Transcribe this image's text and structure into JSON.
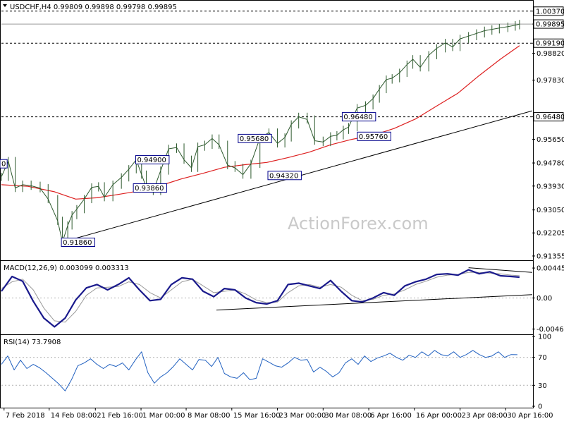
{
  "header": {
    "symbol_line": "USDCHF,H4 0.99809 0.99898 0.99798 0.99895",
    "macd_label": "MACD(12,26,9) 0.003099 0.003313",
    "rsi_label": "RSI(14) 73.7908"
  },
  "watermark": "ActionForex.com",
  "chart_data": [
    {
      "type": "line",
      "name": "price",
      "ylim": [
        0.9125,
        1.0065
      ],
      "y_ticks": [
        "1.00370",
        "0.99895",
        "0.99190",
        "0.98820",
        "0.97830",
        "0.96480",
        "0.95650",
        "0.94780",
        "0.93930",
        "0.93050",
        "0.92205",
        "0.91355"
      ],
      "x_ticks": [
        "7 Feb 2018",
        "14 Feb 08:00",
        "21 Feb 16:00",
        "1 Mar 00:00",
        "8 Mar 08:00",
        "15 Mar 16:00",
        "23 Mar 00:00",
        "30 Mar 08:00",
        "6 Apr 16:00",
        "16 Apr 00:00",
        "23 Apr 08:00",
        "30 Apr 16:00"
      ],
      "x_range": [
        0,
        100
      ],
      "series": [
        {
          "kind": "price",
          "color": "#2e5a2e",
          "x": [
            0,
            1.3,
            2.6,
            4,
            5.6,
            7.3,
            8.8,
            10.6,
            11.5,
            12.5,
            13.3,
            14.2,
            15.6,
            17,
            18.3,
            19.4,
            21,
            22.6,
            24,
            25.4,
            26.4,
            27.3,
            28.6,
            30,
            31.5,
            33,
            34.4,
            35.8,
            37,
            38.3,
            39.7,
            41,
            42.6,
            44,
            45.5,
            47,
            48.7,
            50.4,
            52,
            53.4,
            54.6,
            56,
            57.6,
            59,
            60.6,
            62,
            63.2,
            64.4,
            65.4,
            67,
            68.6,
            70,
            71.2,
            72.5,
            73.6,
            75,
            76.4,
            77.5,
            78.9,
            80.5,
            82,
            83.6,
            85,
            86.4,
            88,
            89.5,
            91,
            92.4,
            93.8,
            95.4,
            96.8,
            97.6
          ],
          "y": [
            0.9427,
            0.9485,
            0.9386,
            0.9398,
            0.9394,
            0.9385,
            0.9345,
            0.9265,
            0.9187,
            0.9248,
            0.9286,
            0.9308,
            0.9345,
            0.9388,
            0.9392,
            0.9352,
            0.9398,
            0.9425,
            0.9455,
            0.949,
            0.9435,
            0.9388,
            0.9375,
            0.945,
            0.953,
            0.9535,
            0.949,
            0.946,
            0.9538,
            0.9545,
            0.9568,
            0.9545,
            0.947,
            0.946,
            0.9435,
            0.9475,
            0.957,
            0.959,
            0.955,
            0.9572,
            0.962,
            0.9648,
            0.9638,
            0.956,
            0.9555,
            0.9576,
            0.958,
            0.96,
            0.961,
            0.968,
            0.969,
            0.9715,
            0.975,
            0.9785,
            0.979,
            0.981,
            0.984,
            0.986,
            0.983,
            0.9875,
            0.99,
            0.992,
            0.9905,
            0.9935,
            0.9945,
            0.9955,
            0.9965,
            0.997,
            0.9975,
            0.998,
            0.9985,
            0.99895
          ]
        },
        {
          "kind": "ma",
          "color": "#dd2020",
          "x": [
            0,
            5,
            10,
            14,
            18,
            22,
            26,
            30,
            34,
            38,
            42,
            46,
            50,
            54,
            58,
            62,
            66,
            70,
            74,
            78,
            82,
            86,
            90,
            94,
            97.6
          ],
          "y": [
            0.9398,
            0.9392,
            0.9372,
            0.9345,
            0.935,
            0.9362,
            0.9375,
            0.9395,
            0.942,
            0.944,
            0.9462,
            0.9472,
            0.948,
            0.9498,
            0.9518,
            0.9545,
            0.9565,
            0.958,
            0.9605,
            0.964,
            0.9688,
            0.9735,
            0.98,
            0.986,
            0.991
          ]
        }
      ],
      "levels": [
        {
          "value": 1.0037,
          "label": "1.00370",
          "style": "dash"
        },
        {
          "value": 0.99895,
          "label": "0.99895",
          "style": "solid-light"
        },
        {
          "value": 0.9919,
          "label": "0.99190",
          "style": "dash"
        },
        {
          "value": 0.9648,
          "label": "0.96480",
          "style": "dash"
        }
      ],
      "trendline": {
        "x": [
          11.3,
          100
        ],
        "y": [
          0.9186,
          0.967
        ]
      },
      "annotations": [
        {
          "label": "0.91860",
          "x": 11.3,
          "y": 0.9186,
          "anchor": "left"
        },
        {
          "label": "0.94900",
          "x": 25.3,
          "y": 0.949,
          "anchor": "left"
        },
        {
          "label": "0.93860",
          "x": 28.0,
          "y": 0.9386,
          "anchor": "center"
        },
        {
          "label": "0.95680",
          "x": 44.6,
          "y": 0.9568,
          "anchor": "left"
        },
        {
          "label": "0.94320",
          "x": 50.2,
          "y": 0.9432,
          "anchor": "left"
        },
        {
          "label": "0.96480",
          "x": 64.2,
          "y": 0.9648,
          "anchor": "left"
        },
        {
          "label": "0.95760",
          "x": 70.2,
          "y": 0.9576,
          "anchor": "center"
        },
        {
          "label": "0",
          "x": 0,
          "y": 0.9475,
          "anchor": "edge"
        }
      ]
    },
    {
      "type": "line",
      "name": "macd",
      "ylim": [
        -0.0052,
        0.0053
      ],
      "y_ticks": [
        "0.004454",
        "0.00",
        "-0.004624"
      ],
      "series": [
        {
          "kind": "macd",
          "color": "#1a1a8c",
          "x": [
            0,
            2,
            4,
            6,
            8,
            10,
            12,
            14,
            16,
            18,
            20,
            22,
            24,
            26,
            28,
            30,
            32,
            34,
            36,
            38,
            40,
            42,
            44,
            46,
            48,
            50,
            52,
            54,
            56,
            58,
            60,
            62,
            64,
            66,
            68,
            70,
            72,
            74,
            76,
            78,
            80,
            82,
            84,
            86,
            88,
            90,
            92,
            94,
            96,
            97.6
          ],
          "y": [
            0.001,
            0.0032,
            0.0025,
            -0.0005,
            -0.003,
            -0.0043,
            -0.003,
            -0.0003,
            0.0015,
            0.002,
            0.0012,
            0.002,
            0.003,
            0.0012,
            -0.0004,
            -0.0002,
            0.002,
            0.003,
            0.0028,
            0.001,
            0.0002,
            0.0014,
            0.0012,
            0.0,
            -0.0007,
            -0.0009,
            -0.0004,
            0.002,
            0.0022,
            0.0018,
            0.0014,
            0.0026,
            0.001,
            -0.0004,
            -0.0006,
            0.0,
            0.0008,
            0.0004,
            0.0018,
            0.0024,
            0.0028,
            0.0035,
            0.0036,
            0.0034,
            0.0042,
            0.0036,
            0.0039,
            0.0033,
            0.0032,
            0.003099
          ]
        },
        {
          "kind": "signal",
          "color": "#9a9a9a",
          "x": [
            0,
            2,
            4,
            6,
            8,
            10,
            12,
            14,
            16,
            18,
            20,
            22,
            24,
            26,
            28,
            30,
            32,
            34,
            36,
            38,
            40,
            42,
            44,
            46,
            48,
            50,
            52,
            54,
            56,
            58,
            60,
            62,
            64,
            66,
            68,
            70,
            72,
            74,
            76,
            78,
            80,
            82,
            84,
            86,
            88,
            90,
            92,
            94,
            96,
            97.6
          ],
          "y": [
            0.0014,
            0.0024,
            0.0028,
            0.0012,
            -0.0015,
            -0.0034,
            -0.0036,
            -0.002,
            0.0004,
            0.0015,
            0.0016,
            0.0017,
            0.0024,
            0.002,
            0.0008,
            0.0,
            0.0012,
            0.0024,
            0.0028,
            0.0018,
            0.0008,
            0.001,
            0.0012,
            0.0006,
            -0.0003,
            -0.0007,
            -0.0006,
            0.0008,
            0.0018,
            0.002,
            0.0016,
            0.002,
            0.0016,
            0.0004,
            -0.0004,
            -0.0002,
            0.0004,
            0.0006,
            0.0012,
            0.002,
            0.0025,
            0.0031,
            0.0034,
            0.0035,
            0.0038,
            0.0038,
            0.0037,
            0.0036,
            0.0034,
            0.003313
          ]
        }
      ],
      "trendlines": [
        {
          "x": [
            40.5,
            100
          ],
          "y": [
            -0.0018,
            0.0005
          ]
        },
        {
          "x": [
            88,
            100
          ],
          "y": [
            0.0045,
            0.0038
          ]
        }
      ]
    },
    {
      "type": "line",
      "name": "rsi",
      "ylim": [
        0,
        100
      ],
      "y_ticks": [
        "100",
        "70",
        "30",
        "0"
      ],
      "series": [
        {
          "kind": "rsi",
          "color": "#2060c0",
          "x": [
            0,
            1.2,
            2.4,
            3.6,
            4.8,
            6,
            7.2,
            8.4,
            9.6,
            10.8,
            12,
            13.2,
            14.4,
            15.6,
            16.8,
            18,
            19.2,
            20.4,
            21.6,
            22.8,
            24,
            25.2,
            26.4,
            27.6,
            28.8,
            30,
            31.2,
            32.4,
            33.6,
            34.8,
            36,
            37.2,
            38.4,
            39.6,
            40.8,
            42,
            43.2,
            44.4,
            45.6,
            46.8,
            48,
            49.2,
            50.4,
            51.6,
            52.8,
            54,
            55.2,
            56.4,
            57.6,
            58.8,
            60,
            61.2,
            62.4,
            63.6,
            64.8,
            66,
            67.2,
            68.4,
            69.6,
            70.8,
            72,
            73.2,
            74.4,
            75.6,
            76.8,
            78,
            79.2,
            80.4,
            81.6,
            82.8,
            84,
            85.2,
            86.4,
            87.6,
            88.8,
            90,
            91.2,
            92.4,
            93.6,
            94.8,
            96,
            97.2
          ],
          "y": [
            60,
            72,
            52,
            66,
            54,
            60,
            55,
            48,
            40,
            32,
            22,
            38,
            58,
            62,
            68,
            60,
            54,
            60,
            57,
            62,
            52,
            66,
            78,
            48,
            33,
            42,
            48,
            57,
            68,
            60,
            52,
            67,
            66,
            57,
            70,
            47,
            42,
            40,
            48,
            38,
            40,
            68,
            63,
            58,
            56,
            62,
            70,
            66,
            67,
            49,
            56,
            50,
            42,
            48,
            62,
            68,
            60,
            72,
            64,
            69,
            72,
            76,
            70,
            66,
            73,
            70,
            78,
            72,
            80,
            74,
            72,
            78,
            70,
            74,
            80,
            74,
            70,
            72,
            78,
            70,
            74,
            73.79
          ]
        }
      ]
    }
  ]
}
